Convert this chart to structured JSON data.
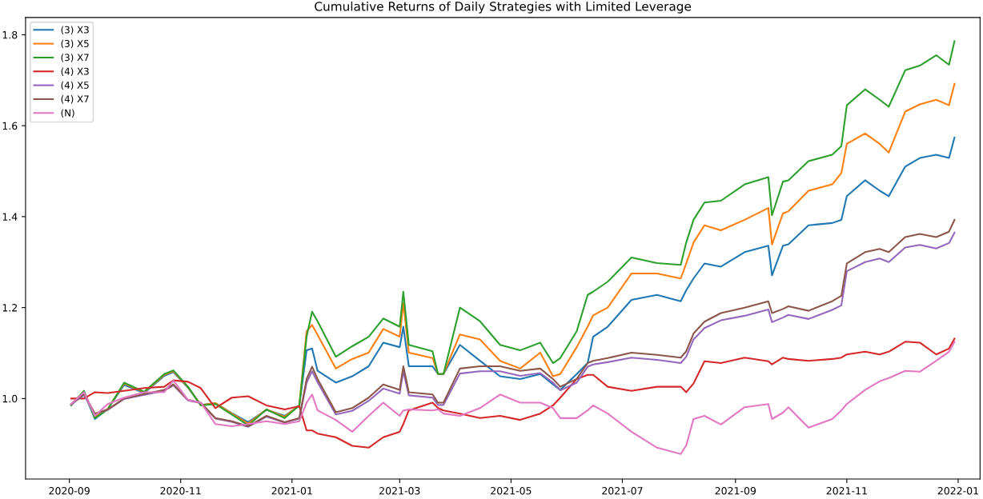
{
  "chart_data": {
    "type": "line",
    "title": "Cumulative Returns of Daily Strategies with Limited Leverage",
    "x": [
      "2020-09-02",
      "2020-09-09",
      "2020-09-15",
      "2020-09-22",
      "2020-10-01",
      "2020-10-12",
      "2020-10-23",
      "2020-10-28",
      "2020-11-05",
      "2020-11-12",
      "2020-11-20",
      "2020-11-29",
      "2020-12-08",
      "2020-12-18",
      "2020-12-28",
      "2021-01-05",
      "2021-01-09",
      "2021-01-12",
      "2021-01-15",
      "2021-01-25",
      "2021-02-03",
      "2021-02-12",
      "2021-02-20",
      "2021-03-01",
      "2021-03-03",
      "2021-03-06",
      "2021-03-19",
      "2021-03-22",
      "2021-03-25",
      "2021-04-03",
      "2021-04-14",
      "2021-04-25",
      "2021-05-06",
      "2021-05-17",
      "2021-05-24",
      "2021-05-28",
      "2021-06-06",
      "2021-06-12",
      "2021-06-15",
      "2021-06-23",
      "2021-07-06",
      "2021-07-20",
      "2021-08-02",
      "2021-08-05",
      "2021-08-09",
      "2021-08-15",
      "2021-08-24",
      "2021-09-06",
      "2021-09-19",
      "2021-09-21",
      "2021-09-27",
      "2021-09-30",
      "2021-10-11",
      "2021-10-24",
      "2021-10-29",
      "2021-11-01",
      "2021-11-11",
      "2021-11-19",
      "2021-11-24",
      "2021-12-03",
      "2021-12-11",
      "2021-12-20",
      "2021-12-27",
      "2021-12-30"
    ],
    "series": [
      {
        "name": "(3) X3",
        "color": "#1f77b4",
        "values": [
          0.987,
          1.014,
          0.955,
          0.977,
          1.03,
          1.012,
          1.05,
          1.058,
          1.024,
          0.986,
          0.99,
          0.968,
          0.948,
          0.975,
          0.962,
          0.984,
          1.106,
          1.11,
          1.061,
          1.035,
          1.049,
          1.071,
          1.123,
          1.113,
          1.158,
          1.071,
          1.071,
          1.054,
          1.054,
          1.118,
          1.083,
          1.049,
          1.043,
          1.054,
          1.031,
          1.019,
          1.054,
          1.078,
          1.136,
          1.158,
          1.217,
          1.228,
          1.214,
          1.238,
          1.264,
          1.297,
          1.29,
          1.322,
          1.336,
          1.271,
          1.336,
          1.339,
          1.381,
          1.386,
          1.393,
          1.445,
          1.48,
          1.457,
          1.445,
          1.51,
          1.529,
          1.536,
          1.529,
          1.574
        ]
      },
      {
        "name": "(3) X5",
        "color": "#ff7f0e",
        "values": [
          0.986,
          1.015,
          0.96,
          0.977,
          1.033,
          1.014,
          1.052,
          1.06,
          1.025,
          0.986,
          0.99,
          0.967,
          0.945,
          0.976,
          0.96,
          0.985,
          1.148,
          1.162,
          1.14,
          1.066,
          1.087,
          1.101,
          1.153,
          1.136,
          1.21,
          1.101,
          1.089,
          1.054,
          1.054,
          1.141,
          1.13,
          1.083,
          1.066,
          1.101,
          1.049,
          1.054,
          1.113,
          1.158,
          1.183,
          1.2,
          1.275,
          1.275,
          1.264,
          1.297,
          1.343,
          1.381,
          1.37,
          1.393,
          1.419,
          1.339,
          1.407,
          1.412,
          1.457,
          1.471,
          1.496,
          1.56,
          1.583,
          1.56,
          1.541,
          1.631,
          1.647,
          1.657,
          1.645,
          1.692
        ]
      },
      {
        "name": "(3) X7",
        "color": "#2ca02c",
        "values": [
          0.985,
          1.017,
          0.957,
          0.976,
          1.035,
          1.015,
          1.054,
          1.062,
          1.026,
          0.985,
          0.988,
          0.965,
          0.941,
          0.976,
          0.957,
          0.985,
          1.136,
          1.191,
          1.17,
          1.092,
          1.115,
          1.136,
          1.176,
          1.158,
          1.235,
          1.118,
          1.104,
          1.054,
          1.054,
          1.2,
          1.17,
          1.118,
          1.106,
          1.123,
          1.078,
          1.089,
          1.148,
          1.228,
          1.235,
          1.257,
          1.31,
          1.298,
          1.294,
          1.343,
          1.393,
          1.431,
          1.435,
          1.471,
          1.487,
          1.403,
          1.477,
          1.48,
          1.522,
          1.536,
          1.555,
          1.645,
          1.68,
          1.657,
          1.642,
          1.722,
          1.732,
          1.755,
          1.734,
          1.786
        ]
      },
      {
        "name": "(4) X3",
        "color": "#d62728",
        "values": [
          1.0,
          1.0,
          1.014,
          1.012,
          1.017,
          1.023,
          1.026,
          1.04,
          1.037,
          1.023,
          0.979,
          1.002,
          1.005,
          0.985,
          0.976,
          0.983,
          0.93,
          0.93,
          0.923,
          0.915,
          0.896,
          0.892,
          0.915,
          0.927,
          0.944,
          0.974,
          0.991,
          0.979,
          0.974,
          0.967,
          0.957,
          0.962,
          0.953,
          0.967,
          0.985,
          1.002,
          1.043,
          1.052,
          1.052,
          1.026,
          1.017,
          1.026,
          1.026,
          1.014,
          1.033,
          1.082,
          1.078,
          1.09,
          1.082,
          1.075,
          1.09,
          1.087,
          1.083,
          1.087,
          1.09,
          1.097,
          1.103,
          1.097,
          1.103,
          1.125,
          1.123,
          1.097,
          1.11,
          1.132
        ]
      },
      {
        "name": "(4) X5",
        "color": "#9467bd",
        "values": [
          0.987,
          1.008,
          0.966,
          0.975,
          0.999,
          1.008,
          1.017,
          1.029,
          0.996,
          0.99,
          0.956,
          0.949,
          0.938,
          0.96,
          0.947,
          0.956,
          1.035,
          1.06,
          1.036,
          0.965,
          0.973,
          0.995,
          1.022,
          1.011,
          1.06,
          1.007,
          1.002,
          0.986,
          0.986,
          1.055,
          1.06,
          1.06,
          1.05,
          1.056,
          1.035,
          1.018,
          1.035,
          1.07,
          1.075,
          1.08,
          1.09,
          1.085,
          1.078,
          1.092,
          1.13,
          1.155,
          1.172,
          1.182,
          1.196,
          1.168,
          1.178,
          1.184,
          1.175,
          1.195,
          1.205,
          1.28,
          1.3,
          1.308,
          1.3,
          1.332,
          1.338,
          1.33,
          1.342,
          1.365
        ]
      },
      {
        "name": "(4) X7",
        "color": "#8c564b",
        "values": [
          0.988,
          1.01,
          0.967,
          0.976,
          1.0,
          1.01,
          1.019,
          1.031,
          0.997,
          0.991,
          0.957,
          0.95,
          0.939,
          0.962,
          0.948,
          0.957,
          1.043,
          1.07,
          1.043,
          0.97,
          0.979,
          1.002,
          1.031,
          1.019,
          1.071,
          1.014,
          1.009,
          0.991,
          0.991,
          1.066,
          1.071,
          1.071,
          1.061,
          1.066,
          1.043,
          1.026,
          1.043,
          1.078,
          1.083,
          1.089,
          1.101,
          1.096,
          1.09,
          1.104,
          1.143,
          1.169,
          1.188,
          1.2,
          1.214,
          1.188,
          1.197,
          1.203,
          1.193,
          1.214,
          1.226,
          1.297,
          1.322,
          1.329,
          1.322,
          1.355,
          1.362,
          1.355,
          1.367,
          1.393
        ]
      },
      {
        "name": "(N)",
        "color": "#e377c2",
        "values": [
          0.988,
          1.014,
          0.962,
          0.988,
          1.002,
          1.014,
          1.014,
          1.04,
          0.997,
          0.991,
          0.944,
          0.939,
          0.944,
          0.95,
          0.944,
          0.95,
          0.991,
          1.009,
          0.974,
          0.953,
          0.927,
          0.962,
          0.991,
          0.962,
          0.974,
          0.976,
          0.974,
          0.976,
          0.967,
          0.962,
          0.979,
          1.009,
          0.991,
          0.991,
          0.979,
          0.957,
          0.957,
          0.974,
          0.985,
          0.967,
          0.927,
          0.892,
          0.878,
          0.897,
          0.955,
          0.962,
          0.943,
          0.981,
          0.988,
          0.955,
          0.969,
          0.981,
          0.936,
          0.955,
          0.974,
          0.988,
          1.019,
          1.038,
          1.045,
          1.061,
          1.059,
          1.083,
          1.103,
          1.125
        ]
      }
    ],
    "xlim": [
      "2020-08-08",
      "2022-01-13"
    ],
    "xticks": [
      {
        "value": "2020-09-01",
        "label": "2020-09"
      },
      {
        "value": "2020-11-01",
        "label": "2020-11"
      },
      {
        "value": "2021-01-01",
        "label": "2021-01"
      },
      {
        "value": "2021-03-01",
        "label": "2021-03"
      },
      {
        "value": "2021-05-01",
        "label": "2021-05"
      },
      {
        "value": "2021-07-01",
        "label": "2021-07"
      },
      {
        "value": "2021-09-01",
        "label": "2021-09"
      },
      {
        "value": "2021-11-01",
        "label": "2021-11"
      },
      {
        "value": "2022-01-01",
        "label": "2022-01"
      }
    ],
    "ylim": [
      0.823,
      1.838
    ],
    "yticks": [
      {
        "value": 1.0,
        "label": "1.0"
      },
      1.2,
      1.4,
      1.6,
      1.8
    ],
    "legend": "top left",
    "grid": false,
    "marker": "none",
    "line_style": "solid"
  }
}
